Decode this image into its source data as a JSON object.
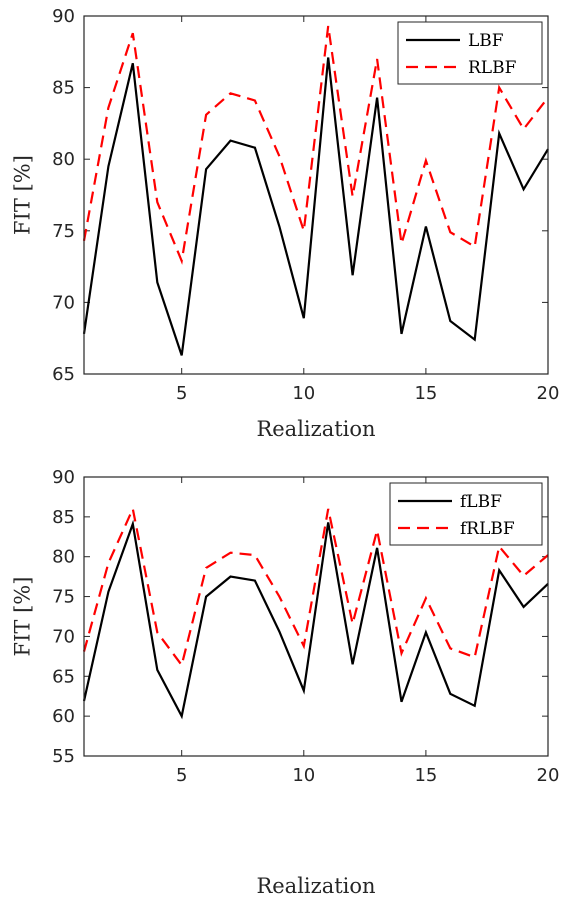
{
  "chart_data": [
    {
      "type": "line",
      "xlabel": "Realization",
      "ylabel": "FIT [%]",
      "xlim": [
        1,
        20
      ],
      "ylim": [
        65,
        90
      ],
      "xticks": [
        5,
        10,
        15,
        20
      ],
      "yticks": [
        65,
        70,
        75,
        80,
        85,
        90
      ],
      "grid": false,
      "legend_position": "top-right",
      "x": [
        1,
        2,
        3,
        4,
        5,
        6,
        7,
        8,
        9,
        10,
        11,
        12,
        13,
        14,
        15,
        16,
        17,
        18,
        19,
        20
      ],
      "series": [
        {
          "name": "LBF",
          "color": "#000000",
          "style": "solid",
          "values": [
            67.8,
            79.5,
            86.7,
            71.4,
            66.3,
            79.3,
            81.3,
            80.8,
            75.3,
            68.9,
            87.1,
            71.9,
            84.3,
            67.8,
            75.3,
            68.7,
            67.4,
            81.8,
            77.9,
            80.7
          ]
        },
        {
          "name": "RLBF",
          "color": "#ff0000",
          "style": "dashed",
          "values": [
            74.3,
            83.6,
            88.8,
            77.0,
            72.9,
            83.1,
            84.6,
            84.1,
            80.2,
            75.0,
            89.3,
            77.4,
            87.0,
            74.1,
            79.9,
            74.9,
            73.9,
            85.0,
            82.1,
            84.3
          ]
        }
      ]
    },
    {
      "type": "line",
      "xlabel": "Realization",
      "ylabel": "FIT [%]",
      "xlim": [
        1,
        20
      ],
      "ylim": [
        55,
        90
      ],
      "xticks": [
        5,
        10,
        15,
        20
      ],
      "yticks": [
        55,
        60,
        65,
        70,
        75,
        80,
        85,
        90
      ],
      "grid": false,
      "legend_position": "top-right",
      "x": [
        1,
        2,
        3,
        4,
        5,
        6,
        7,
        8,
        9,
        10,
        11,
        12,
        13,
        14,
        15,
        16,
        17,
        18,
        19,
        20
      ],
      "series": [
        {
          "name": "fLBF",
          "color": "#000000",
          "style": "solid",
          "values": [
            61.9,
            75.6,
            84.1,
            65.8,
            60.0,
            75.0,
            77.5,
            77.0,
            70.6,
            63.2,
            84.3,
            66.5,
            81.1,
            61.8,
            70.5,
            62.8,
            61.3,
            78.3,
            73.7,
            76.6
          ]
        },
        {
          "name": "fRLBF",
          "color": "#ff0000",
          "style": "dashed",
          "values": [
            68.1,
            79.2,
            86.0,
            70.5,
            66.4,
            78.6,
            80.5,
            80.2,
            75.0,
            68.8,
            86.0,
            71.6,
            83.3,
            67.9,
            74.8,
            68.5,
            67.4,
            81.3,
            77.6,
            80.2
          ]
        }
      ]
    }
  ]
}
